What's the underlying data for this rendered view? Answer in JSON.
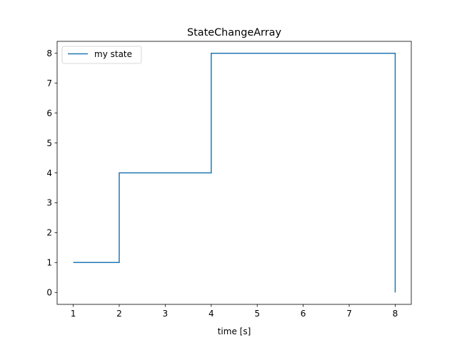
{
  "chart_data": {
    "type": "line",
    "step": true,
    "title": "StateChangeArray",
    "xlabel": "time [s]",
    "ylabel": "",
    "xlim": [
      0.65,
      8.35
    ],
    "ylim": [
      -0.4,
      8.4
    ],
    "xticks": [
      1,
      2,
      3,
      4,
      5,
      6,
      7,
      8
    ],
    "yticks": [
      0,
      1,
      2,
      3,
      4,
      5,
      6,
      7,
      8
    ],
    "xtick_labels": [
      "1",
      "2",
      "3",
      "4",
      "5",
      "6",
      "7",
      "8"
    ],
    "ytick_labels": [
      "0",
      "1",
      "2",
      "3",
      "4",
      "5",
      "6",
      "7",
      "8"
    ],
    "grid": false,
    "legend_position": "upper left",
    "series": [
      {
        "name": "my state",
        "color": "#1f77b4",
        "x": [
          1,
          2,
          2,
          4,
          4,
          8,
          8
        ],
        "y": [
          1,
          1,
          4,
          4,
          8,
          8,
          0
        ]
      }
    ]
  }
}
